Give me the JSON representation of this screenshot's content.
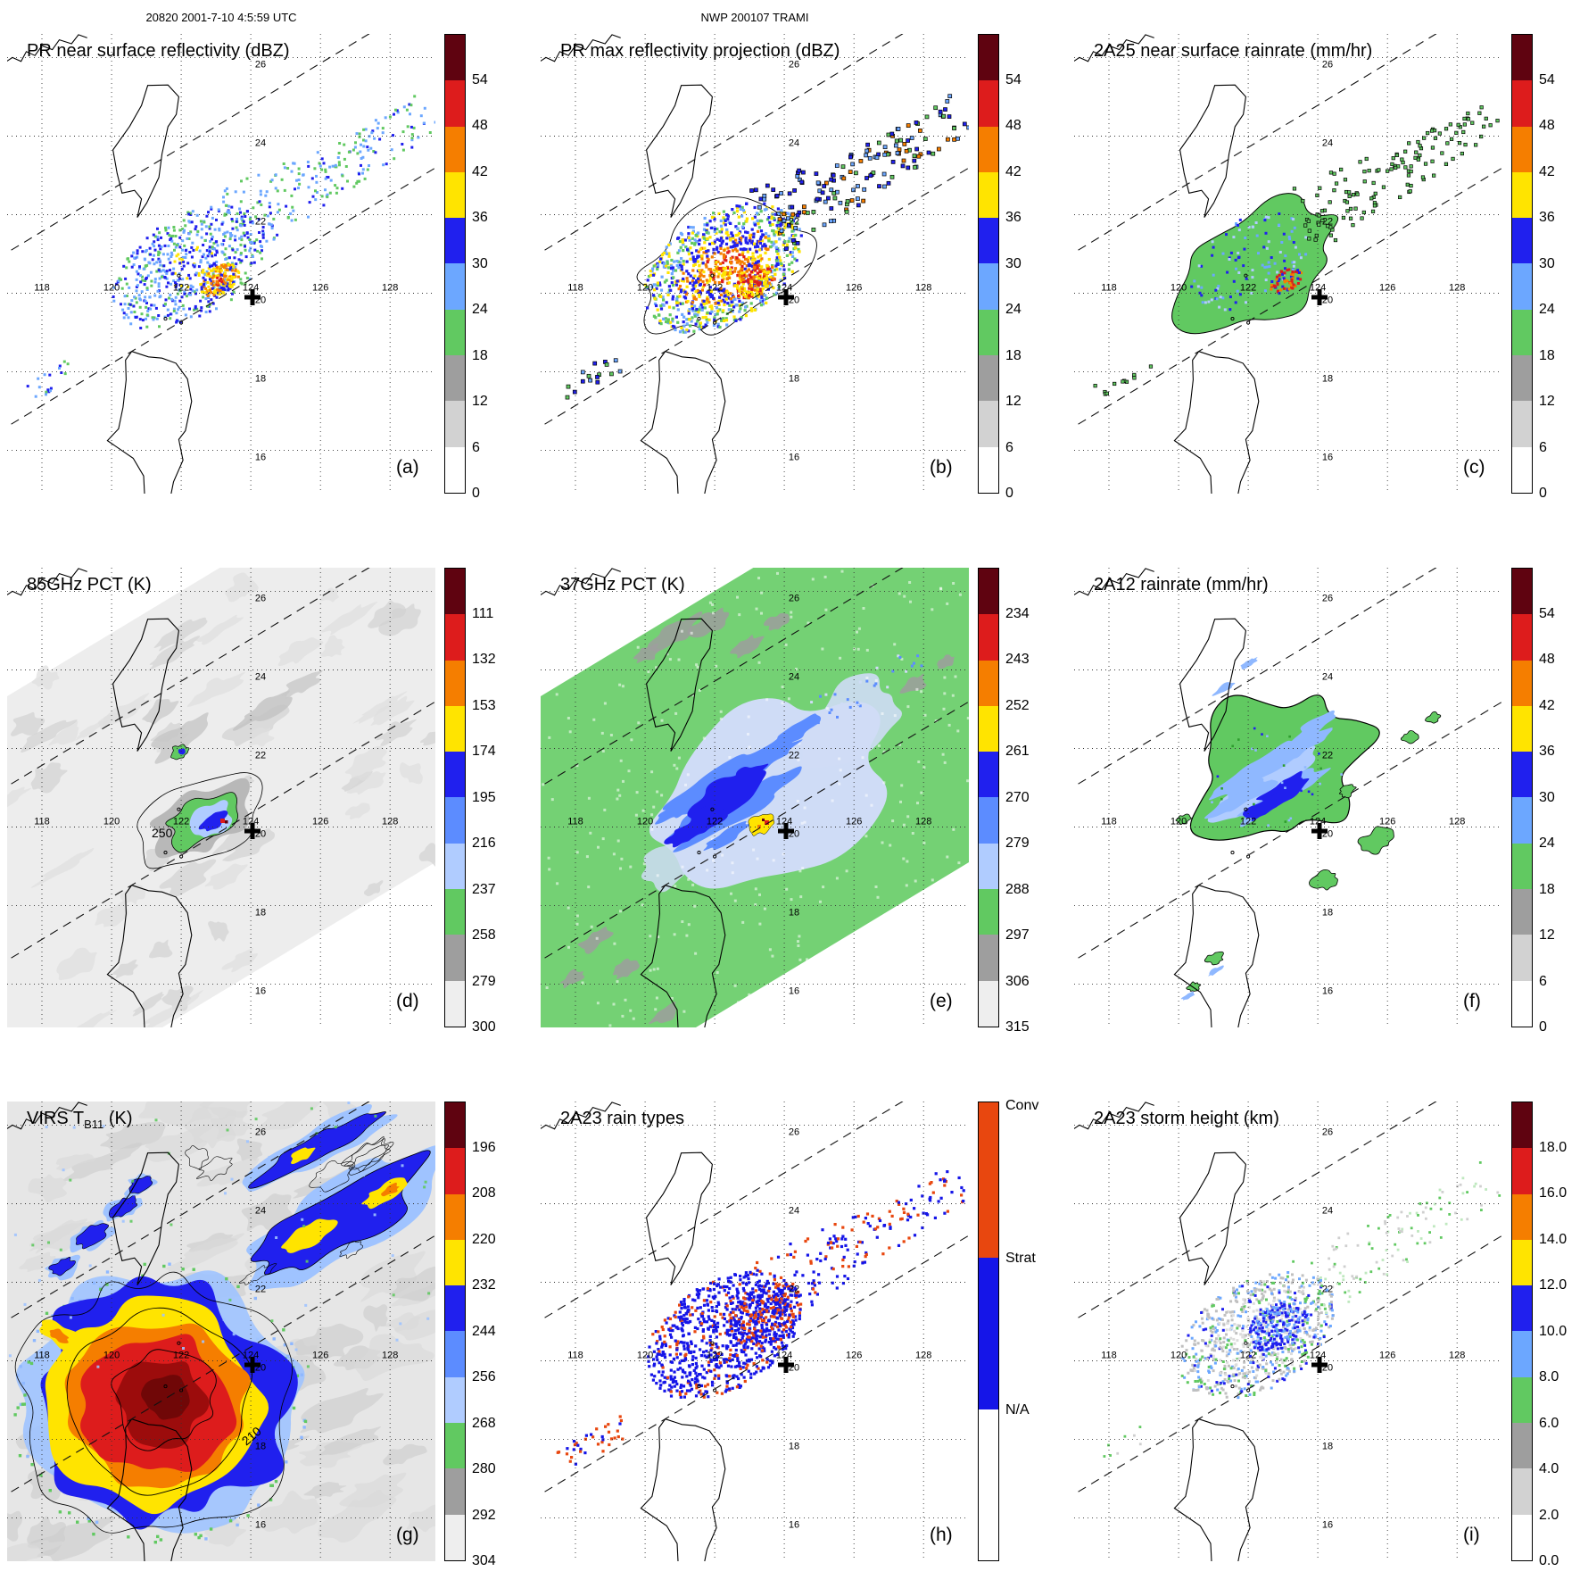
{
  "header": {
    "left": "20820 2001-7-10 4:5:59 UTC",
    "center": "NWP 200107 TRAMI"
  },
  "geo": {
    "lon_labels": [
      "118",
      "120",
      "122",
      "124",
      "126",
      "128"
    ],
    "lat_labels": [
      "26",
      "24",
      "22",
      "20",
      "18",
      "16"
    ]
  },
  "palette": {
    "maroon": "#5f0310",
    "red": "#dd1c1c",
    "orange": "#f57e00",
    "yellow": "#ffe400",
    "dkblue": "#2020ee",
    "ltblue": "#6ca7ff",
    "paleblue": "#b0ccff",
    "green": "#61c961",
    "gray": "#9e9e9e",
    "ltgray": "#d2d2d2",
    "white": "#ffffff",
    "conv": "#e8470f",
    "strat": "#1515e8",
    "band85": "#ededed",
    "band37": "#74d174",
    "virsbg": "#e6e6e6"
  },
  "colorbars": {
    "dbz": {
      "labels": [
        "54",
        "48",
        "42",
        "36",
        "30",
        "24",
        "18",
        "12",
        "6",
        "0"
      ],
      "colors": [
        "#5f0310",
        "#dd1c1c",
        "#f57e00",
        "#ffe400",
        "#2020ee",
        "#6ca7ff",
        "#61c961",
        "#9e9e9e",
        "#d2d2d2",
        "#ffffff"
      ]
    },
    "pct85": {
      "labels": [
        "111",
        "132",
        "153",
        "174",
        "195",
        "216",
        "237",
        "258",
        "279",
        "300"
      ],
      "colors": [
        "#5f0310",
        "#dd1c1c",
        "#f57e00",
        "#ffe400",
        "#2020ee",
        "#5c8cff",
        "#b0ccff",
        "#61c961",
        "#9e9e9e",
        "#eeeeee"
      ]
    },
    "pct37": {
      "labels": [
        "234",
        "243",
        "252",
        "261",
        "270",
        "279",
        "288",
        "297",
        "306",
        "315"
      ],
      "colors": [
        "#5f0310",
        "#dd1c1c",
        "#f57e00",
        "#ffe400",
        "#2020ee",
        "#5c8cff",
        "#b0ccff",
        "#61c961",
        "#9e9e9e",
        "#eeeeee"
      ]
    },
    "virs": {
      "labels": [
        "196",
        "208",
        "220",
        "232",
        "244",
        "256",
        "268",
        "280",
        "292",
        "304"
      ],
      "colors": [
        "#5f0310",
        "#dd1c1c",
        "#f57e00",
        "#ffe400",
        "#2020ee",
        "#5c8cff",
        "#b0ccff",
        "#61c961",
        "#9e9e9e",
        "#eeeeee"
      ]
    },
    "height": {
      "labels": [
        "18.0",
        "16.0",
        "14.0",
        "12.0",
        "10.0",
        "8.0",
        "6.0",
        "4.0",
        "2.0",
        "0.0"
      ],
      "colors": [
        "#5f0310",
        "#dd1c1c",
        "#f57e00",
        "#ffe400",
        "#2020ee",
        "#6ca7ff",
        "#61c961",
        "#9e9e9e",
        "#d2d2d2",
        "#ffffff"
      ]
    },
    "raintype": {
      "segments": [
        {
          "label": "Conv",
          "color": "#e8470f",
          "frac": 0.34
        },
        {
          "label": "Strat",
          "color": "#1515e8",
          "frac": 0.33
        },
        {
          "label": "N/A",
          "color": "#ffffff",
          "frac": 0.33
        }
      ]
    }
  },
  "panels": [
    {
      "id": "a",
      "letter": "(a)",
      "title": "PR near surface reflectivity (dBZ)",
      "colorbar": "dbz",
      "field": "pr_nsr"
    },
    {
      "id": "b",
      "letter": "(b)",
      "title": "PR max reflectivity projection (dBZ)",
      "colorbar": "dbz",
      "field": "pr_max"
    },
    {
      "id": "c",
      "letter": "(c)",
      "title": "2A25 near surface rainrate (mm/hr)",
      "colorbar": "dbz",
      "field": "rr25"
    },
    {
      "id": "d",
      "letter": "(d)",
      "title": "85GHz PCT (K)",
      "colorbar": "pct85",
      "field": "pct85",
      "contour_label": "250"
    },
    {
      "id": "e",
      "letter": "(e)",
      "title": "37GHz PCT (K)",
      "colorbar": "pct37",
      "field": "pct37"
    },
    {
      "id": "f",
      "letter": "(f)",
      "title": "2A12 rainrate (mm/hr)",
      "colorbar": "dbz",
      "field": "rr12"
    },
    {
      "id": "g",
      "letter": "(g)",
      "title": "VIRS T",
      "title_sub": "B11",
      "title_end": " (K)",
      "colorbar": "virs",
      "field": "virs",
      "contour_label": "210"
    },
    {
      "id": "h",
      "letter": "(h)",
      "title": "2A23 rain types",
      "colorbar": "raintype",
      "field": "types"
    },
    {
      "id": "i",
      "letter": "(i)",
      "title": "2A23 storm height (km)",
      "colorbar": "height",
      "field": "height"
    }
  ]
}
